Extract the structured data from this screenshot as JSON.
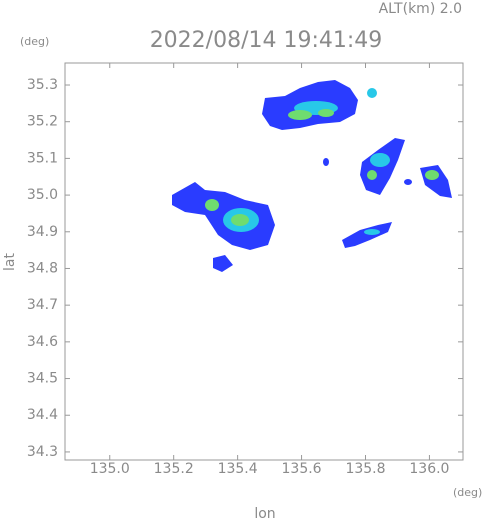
{
  "chart_data": {
    "type": "map",
    "title": "2022/08/14 19:41:49",
    "subtitle": "ALT(km) 2.0",
    "x_unit": "(deg)",
    "y_unit": "(deg)",
    "xlabel": "lon",
    "ylabel": "lat",
    "xlim": [
      134.86,
      136.105
    ],
    "ylim": [
      34.278,
      35.36
    ],
    "xticks": [
      {
        "value": 135.0,
        "label": "135.0"
      },
      135.2,
      135.4,
      135.6,
      135.8,
      {
        "value": 136.0,
        "label": "136.0"
      }
    ],
    "yticks": [
      34.3,
      34.4,
      34.5,
      34.6,
      34.7,
      34.8,
      34.9,
      {
        "value": 35.0,
        "label": "35.0"
      },
      35.1,
      35.2,
      35.3
    ]
  }
}
